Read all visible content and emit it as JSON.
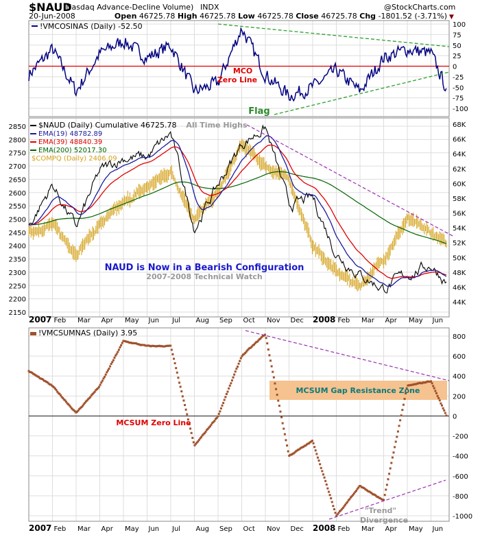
{
  "header": {
    "symbol": "$NAUD",
    "name": "(Nasdaq Advance-Decline Volume)",
    "exchange": "INDX",
    "date": "20-Jun-2008",
    "watermark": "@StockCharts.com",
    "open_label": "Open",
    "open": "46725.78",
    "high_label": "High",
    "high": "46725.78",
    "low_label": "Low",
    "low": "46725.78",
    "close_label": "Close",
    "close": "46725.78",
    "chg_label": "Chg",
    "chg": "-1801.52 (-3.71%)"
  },
  "colors": {
    "naud": "#000000",
    "ema19": "#1a1a9c",
    "ema39": "#e00000",
    "ema200": "#006400",
    "compq": "#d4a017",
    "mco": "#000080",
    "mcsum": "#a0522d",
    "trend_green": "#2ca02c",
    "trend_purple": "#9b30b0",
    "zone": "#f6c28f"
  },
  "chart_data": [
    {
      "type": "line",
      "title": "!VMCOSINAS (Daily) -52.50",
      "ylim": [
        -100,
        100
      ],
      "yticks": [
        100,
        75,
        50,
        25,
        0,
        -25,
        -50,
        -75,
        -100
      ],
      "annotations": [
        "MCO",
        "Zero Line",
        "Flag"
      ],
      "series": [
        {
          "name": "!VMCOSINAS",
          "anchors": [
            -20,
            40,
            -60,
            30,
            60,
            20,
            50,
            -60,
            -40,
            90,
            -20,
            -70,
            -50,
            -10,
            -60,
            20,
            40,
            30,
            -52.5
          ]
        }
      ]
    },
    {
      "type": "line",
      "title": "$NAUD (Daily) Cumulative 46725.78",
      "yticks_left": [
        2850,
        2800,
        2750,
        2700,
        2650,
        2600,
        2550,
        2500,
        2450,
        2400,
        2350,
        2300,
        2250,
        2200,
        2150
      ],
      "ylim_left": [
        2150,
        2850
      ],
      "yticks_right": [
        "68K",
        "66K",
        "64K",
        "62K",
        "60K",
        "58K",
        "56K",
        "54K",
        "52K",
        "50K",
        "48K",
        "46K",
        "44K"
      ],
      "ylim_right": [
        44000,
        68000
      ],
      "legend": [
        "$NAUD (Daily) Cumulative 46725.78",
        "EMA(19) 48782.89",
        "EMA(39) 48840.39",
        "EMA(200) 52017.30",
        "$COMPQ (Daily) 2406.09"
      ],
      "annotations": [
        "All Time Highs",
        "NAUD is Now in a Bearish Configuration",
        "2007-2008 Technical Watch"
      ],
      "series": [
        {
          "name": "$NAUD",
          "unit": "K",
          "anchors": [
            54.2,
            59.8,
            54,
            61.6,
            63.5,
            63.5,
            66.7,
            54,
            59.8,
            65.3,
            67.6,
            57,
            58,
            50.5,
            47.7,
            45.8,
            47.7,
            49,
            46.7
          ]
        },
        {
          "name": "$COMPQ",
          "anchors": [
            2450,
            2480,
            2370,
            2480,
            2560,
            2620,
            2680,
            2500,
            2600,
            2780,
            2700,
            2650,
            2400,
            2300,
            2250,
            2350,
            2500,
            2450,
            2406
          ]
        }
      ]
    },
    {
      "type": "scatter",
      "title": "!VMCSUMNAS (Daily) 3.95",
      "ylim": [
        -1000,
        800
      ],
      "yticks": [
        800,
        600,
        400,
        200,
        0,
        -200,
        -400,
        -600,
        -800,
        -1000
      ],
      "annotations": [
        "MCSUM Zero Line",
        "MCSUM Gap Resistance Zone",
        "\"Trend\"",
        "Divergence"
      ],
      "series": [
        {
          "name": "!VMCSUMNAS",
          "anchors": [
            450,
            300,
            30,
            300,
            750,
            700,
            700,
            -300,
            0,
            600,
            820,
            -400,
            -250,
            -1000,
            -700,
            -850,
            300,
            350,
            4
          ]
        }
      ]
    }
  ],
  "x_axis": {
    "months": [
      "2007",
      "Feb",
      "Mar",
      "Apr",
      "May",
      "Jun",
      "Jul",
      "Aug",
      "Sep",
      "Oct",
      "Nov",
      "Dec",
      "2008",
      "Feb",
      "Mar",
      "Apr",
      "May",
      "Jun"
    ]
  }
}
